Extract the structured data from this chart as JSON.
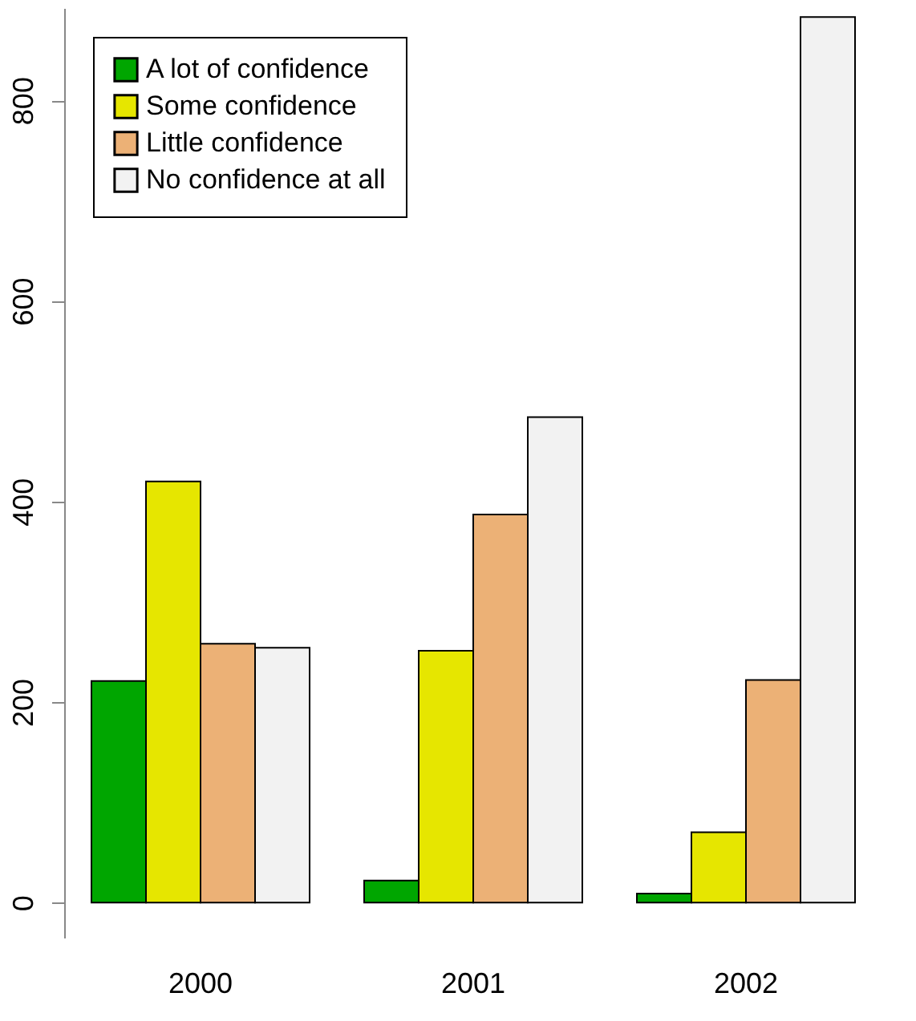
{
  "chart_data": {
    "type": "bar",
    "categories": [
      "2000",
      "2001",
      "2002"
    ],
    "series": [
      {
        "name": "A lot of confidence",
        "color": "#00a600",
        "values": [
          221,
          22,
          9
        ]
      },
      {
        "name": "Some confidence",
        "color": "#e6e600",
        "values": [
          420,
          251,
          70
        ]
      },
      {
        "name": "Little confidence",
        "color": "#ecb176",
        "values": [
          258,
          387,
          222
        ]
      },
      {
        "name": "No confidence at all",
        "color": "#f2f2f2",
        "values": [
          254,
          484,
          883
        ]
      }
    ],
    "ylim": [
      -35,
      892
    ],
    "yticks": [
      0,
      200,
      400,
      600,
      800
    ],
    "grid": false,
    "legend": "top left"
  }
}
